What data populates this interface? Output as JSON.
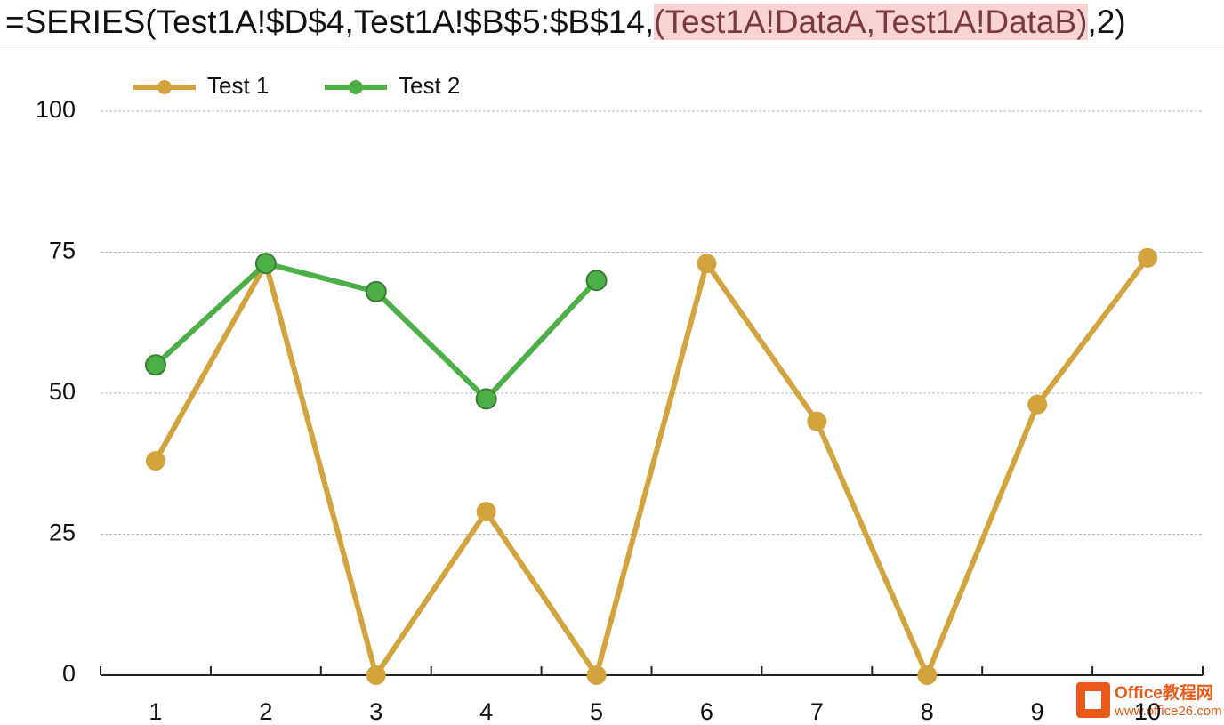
{
  "formula_bar": {
    "prefix": "=SERIES(Test1A!$D$4,Test1A!$B$5:$B$14,",
    "highlight": "(Test1A!DataA,Test1A!DataB)",
    "suffix": ",2)"
  },
  "chart_data": {
    "type": "line",
    "categories": [
      1,
      2,
      3,
      4,
      5,
      6,
      7,
      8,
      9,
      10
    ],
    "series": [
      {
        "name": "Test 1",
        "color": "#d3a33e",
        "values": [
          38,
          73,
          0,
          29,
          0,
          73,
          45,
          0,
          48,
          74
        ]
      },
      {
        "name": "Test 2",
        "color": "#4caf48",
        "values": [
          55,
          73,
          68,
          49,
          70,
          null,
          null,
          null,
          null,
          null
        ]
      }
    ],
    "ylim": [
      0,
      100
    ],
    "yticks": [
      0,
      25,
      50,
      75,
      100
    ],
    "grid": true,
    "legend": "top-left"
  },
  "watermark": {
    "title": "Office教程网",
    "url": "www.office26.com"
  }
}
